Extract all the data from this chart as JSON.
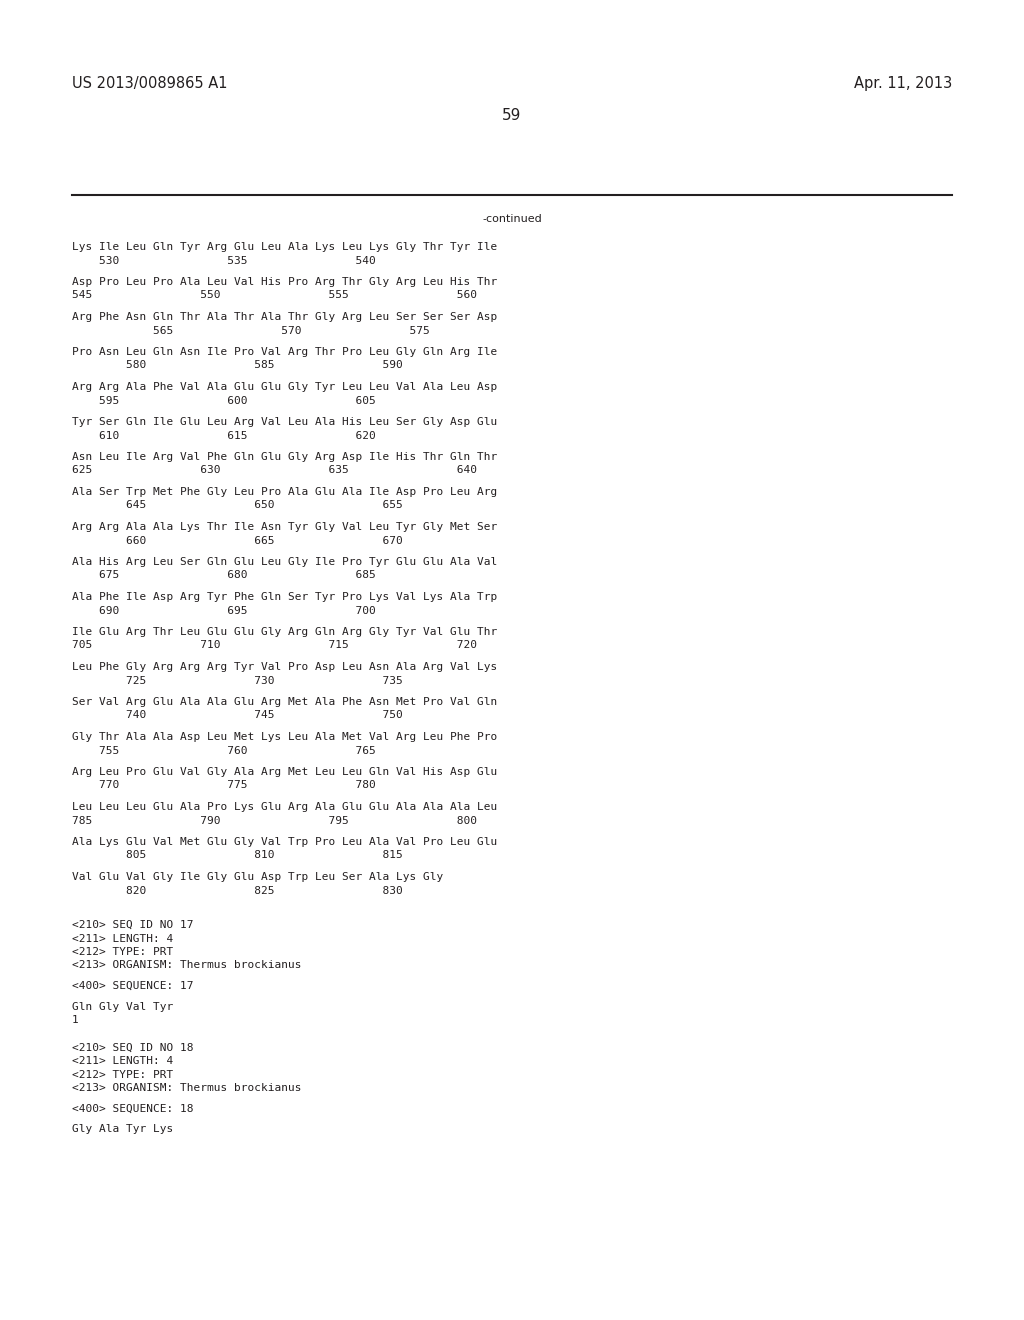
{
  "header_left": "US 2013/0089865 A1",
  "header_right": "Apr. 11, 2013",
  "page_number": "59",
  "continued_label": "-continued",
  "background_color": "#ffffff",
  "text_color": "#231f20",
  "font_size": 8.0,
  "header_font_size": 10.5,
  "page_num_font_size": 11,
  "sequence_blocks": [
    {
      "seq_line": "Lys Ile Leu Gln Tyr Arg Glu Leu Ala Lys Leu Lys Gly Thr Tyr Ile",
      "num_line": "    530                535                540"
    },
    {
      "seq_line": "Asp Pro Leu Pro Ala Leu Val His Pro Arg Thr Gly Arg Leu His Thr",
      "num_line": "545                550                555                560"
    },
    {
      "seq_line": "Arg Phe Asn Gln Thr Ala Thr Ala Thr Gly Arg Leu Ser Ser Ser Asp",
      "num_line": "            565                570                575"
    },
    {
      "seq_line": "Pro Asn Leu Gln Asn Ile Pro Val Arg Thr Pro Leu Gly Gln Arg Ile",
      "num_line": "        580                585                590"
    },
    {
      "seq_line": "Arg Arg Ala Phe Val Ala Glu Glu Gly Tyr Leu Leu Val Ala Leu Asp",
      "num_line": "    595                600                605"
    },
    {
      "seq_line": "Tyr Ser Gln Ile Glu Leu Arg Val Leu Ala His Leu Ser Gly Asp Glu",
      "num_line": "    610                615                620"
    },
    {
      "seq_line": "Asn Leu Ile Arg Val Phe Gln Glu Gly Arg Asp Ile His Thr Gln Thr",
      "num_line": "625                630                635                640"
    },
    {
      "seq_line": "Ala Ser Trp Met Phe Gly Leu Pro Ala Glu Ala Ile Asp Pro Leu Arg",
      "num_line": "        645                650                655"
    },
    {
      "seq_line": "Arg Arg Ala Ala Lys Thr Ile Asn Tyr Gly Val Leu Tyr Gly Met Ser",
      "num_line": "        660                665                670"
    },
    {
      "seq_line": "Ala His Arg Leu Ser Gln Glu Leu Gly Ile Pro Tyr Glu Glu Ala Val",
      "num_line": "    675                680                685"
    },
    {
      "seq_line": "Ala Phe Ile Asp Arg Tyr Phe Gln Ser Tyr Pro Lys Val Lys Ala Trp",
      "num_line": "    690                695                700"
    },
    {
      "seq_line": "Ile Glu Arg Thr Leu Glu Glu Gly Arg Gln Arg Gly Tyr Val Glu Thr",
      "num_line": "705                710                715                720"
    },
    {
      "seq_line": "Leu Phe Gly Arg Arg Arg Tyr Val Pro Asp Leu Asn Ala Arg Val Lys",
      "num_line": "        725                730                735"
    },
    {
      "seq_line": "Ser Val Arg Glu Ala Ala Glu Arg Met Ala Phe Asn Met Pro Val Gln",
      "num_line": "        740                745                750"
    },
    {
      "seq_line": "Gly Thr Ala Ala Asp Leu Met Lys Leu Ala Met Val Arg Leu Phe Pro",
      "num_line": "    755                760                765"
    },
    {
      "seq_line": "Arg Leu Pro Glu Val Gly Ala Arg Met Leu Leu Gln Val His Asp Glu",
      "num_line": "    770                775                780"
    },
    {
      "seq_line": "Leu Leu Leu Glu Ala Pro Lys Glu Arg Ala Glu Glu Ala Ala Ala Leu",
      "num_line": "785                790                795                800"
    },
    {
      "seq_line": "Ala Lys Glu Val Met Glu Gly Val Trp Pro Leu Ala Val Pro Leu Glu",
      "num_line": "        805                810                815"
    },
    {
      "seq_line": "Val Glu Val Gly Ile Gly Glu Asp Trp Leu Ser Ala Lys Gly",
      "num_line": "        820                825                830"
    }
  ],
  "footer_lines": [
    "",
    "<210> SEQ ID NO 17",
    "<211> LENGTH: 4",
    "<212> TYPE: PRT",
    "<213> ORGANISM: Thermus brockianus",
    "",
    "<400> SEQUENCE: 17",
    "",
    "Gln Gly Val Tyr",
    "1",
    "",
    "",
    "<210> SEQ ID NO 18",
    "<211> LENGTH: 4",
    "<212> TYPE: PRT",
    "<213> ORGANISM: Thermus brockianus",
    "",
    "<400> SEQUENCE: 18",
    "",
    "Gly Ala Tyr Lys"
  ]
}
